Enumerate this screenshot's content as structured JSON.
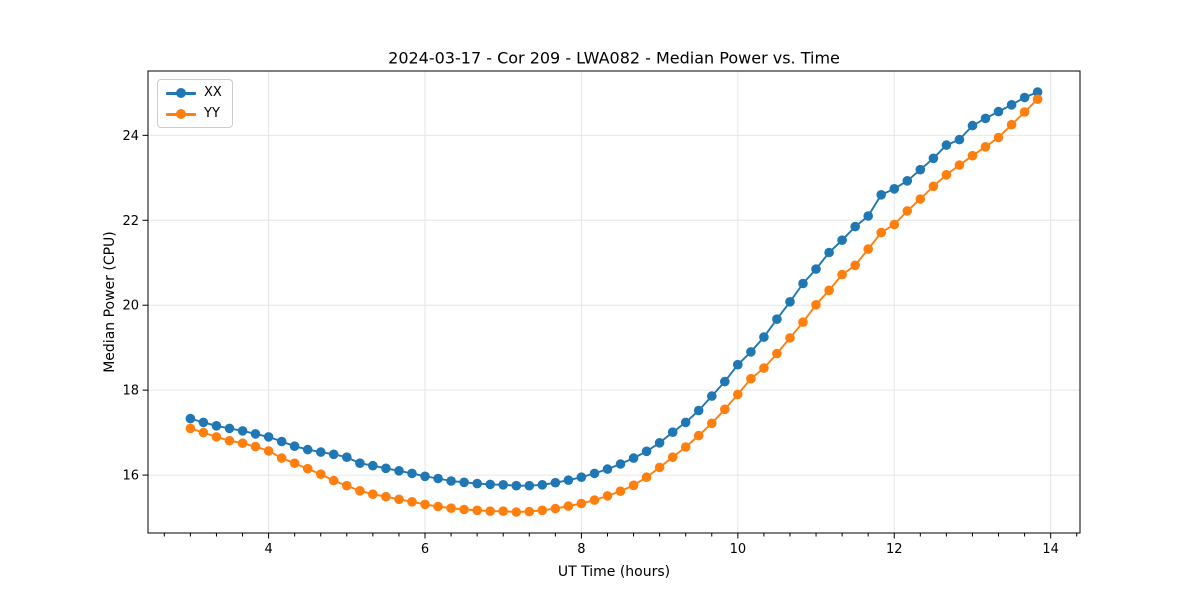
{
  "colors": {
    "grid": "#e6e6e6",
    "spine": "#000000",
    "text": "#000000",
    "series_blue": "#1f77b4",
    "series_orange": "#ff7f0e"
  },
  "chart_data": {
    "type": "line",
    "title": "2024-03-17 - Cor 209 - LWA082 - Median Power vs. Time",
    "xlabel": "UT Time (hours)",
    "ylabel": "Median Power (CPU)",
    "grid": true,
    "legend_position": "upper-left",
    "xlim": [
      2.458,
      14.375
    ],
    "ylim": [
      14.636,
      25.515
    ],
    "xticks": [
      4,
      6,
      8,
      10,
      12,
      14
    ],
    "yticks": [
      16,
      18,
      20,
      22,
      24
    ],
    "xtick_labels": [
      "4",
      "6",
      "8",
      "10",
      "12",
      "14"
    ],
    "ytick_labels": [
      "16",
      "18",
      "20",
      "22",
      "24"
    ],
    "x_minor_step": 0.33333,
    "x": [
      3.0,
      3.167,
      3.333,
      3.5,
      3.667,
      3.833,
      4.0,
      4.167,
      4.333,
      4.5,
      4.667,
      4.833,
      5.0,
      5.167,
      5.333,
      5.5,
      5.667,
      5.833,
      6.0,
      6.167,
      6.333,
      6.5,
      6.667,
      6.833,
      7.0,
      7.167,
      7.333,
      7.5,
      7.667,
      7.833,
      8.0,
      8.167,
      8.333,
      8.5,
      8.667,
      8.833,
      9.0,
      9.167,
      9.333,
      9.5,
      9.667,
      9.833,
      10.0,
      10.167,
      10.333,
      10.5,
      10.667,
      10.833,
      11.0,
      11.167,
      11.333,
      11.5,
      11.667,
      11.833,
      12.0,
      12.167,
      12.333,
      12.5,
      12.667,
      12.833,
      13.0,
      13.167,
      13.333,
      13.5,
      13.667,
      13.833
    ],
    "series": [
      {
        "name": "XX",
        "color": "#1f77b4",
        "marker": "circle",
        "values": [
          17.33,
          17.24,
          17.16,
          17.1,
          17.04,
          16.97,
          16.9,
          16.79,
          16.68,
          16.6,
          16.54,
          16.49,
          16.42,
          16.28,
          16.22,
          16.16,
          16.1,
          16.04,
          15.97,
          15.92,
          15.86,
          15.83,
          15.8,
          15.78,
          15.77,
          15.75,
          15.75,
          15.77,
          15.82,
          15.88,
          15.95,
          16.04,
          16.14,
          16.26,
          16.4,
          16.56,
          16.76,
          17.01,
          17.24,
          17.52,
          17.86,
          18.2,
          18.6,
          18.9,
          19.25,
          19.67,
          20.08,
          20.51,
          20.85,
          21.24,
          21.53,
          21.85,
          22.1,
          22.6,
          22.74,
          22.93,
          23.19,
          23.46,
          23.77,
          23.9,
          24.23,
          24.4,
          24.56,
          24.72,
          24.89,
          25.02
        ]
      },
      {
        "name": "YY",
        "color": "#ff7f0e",
        "marker": "circle",
        "values": [
          17.1,
          17.0,
          16.9,
          16.81,
          16.75,
          16.67,
          16.57,
          16.4,
          16.28,
          16.15,
          16.02,
          15.87,
          15.75,
          15.63,
          15.55,
          15.49,
          15.43,
          15.37,
          15.31,
          15.26,
          15.22,
          15.19,
          15.17,
          15.15,
          15.15,
          15.13,
          15.14,
          15.17,
          15.21,
          15.27,
          15.33,
          15.41,
          15.51,
          15.62,
          15.76,
          15.95,
          16.18,
          16.42,
          16.66,
          16.93,
          17.22,
          17.55,
          17.9,
          18.27,
          18.52,
          18.86,
          19.23,
          19.6,
          20.01,
          20.35,
          20.72,
          20.94,
          21.32,
          21.71,
          21.9,
          22.22,
          22.5,
          22.8,
          23.07,
          23.3,
          23.52,
          23.73,
          23.95,
          24.25,
          24.55,
          24.85
        ]
      }
    ]
  }
}
